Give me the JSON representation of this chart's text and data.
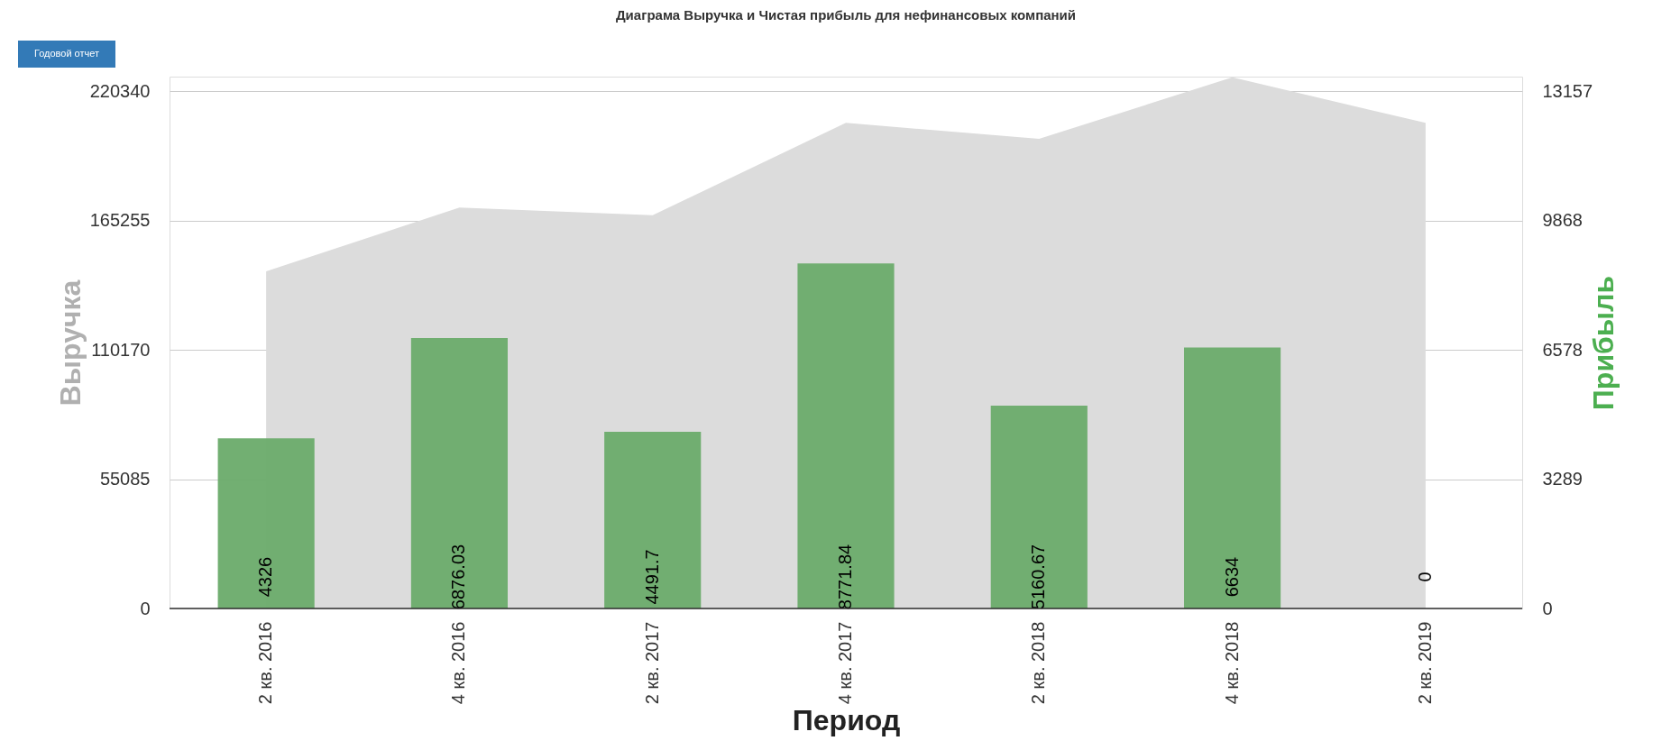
{
  "chart_data": {
    "type": "bar",
    "title": "Диаграма Выручка и Чистая прибыль для нефинансовых компаний",
    "xlabel": "Период",
    "ylabel": "Выручка",
    "y2label": "Прибыль",
    "categories": [
      "2 кв. 2016",
      "4 кв. 2016",
      "2 кв. 2017",
      "4 кв. 2017",
      "2 кв. 2018",
      "4 кв. 2018",
      "2 кв. 2019"
    ],
    "series": [
      {
        "name": null,
        "type": "area",
        "color": "#dcdcdc",
        "values": [
          143600,
          170700,
          167500,
          206800,
          200000,
          226200,
          206800
        ]
      },
      {
        "name": null,
        "axis": "y2",
        "color": "#6aab6a",
        "values": [
          4326,
          6876.03,
          4491.7,
          8771.84,
          5160.67,
          6634,
          0
        ],
        "value_labels": [
          "4326",
          "6876.03",
          "4491.7",
          "8771.84",
          "5160.67",
          "6634",
          "0"
        ]
      }
    ],
    "ylim": [
      0,
      226500
    ],
    "yticks": [
      0,
      55085,
      110170,
      165255,
      220340
    ],
    "y2lim": [
      0,
      13525
    ],
    "y2ticks": [
      0,
      3289,
      6578,
      9868,
      13157
    ],
    "grid": "y",
    "annotations": [
      "Годовой отчет"
    ]
  }
}
